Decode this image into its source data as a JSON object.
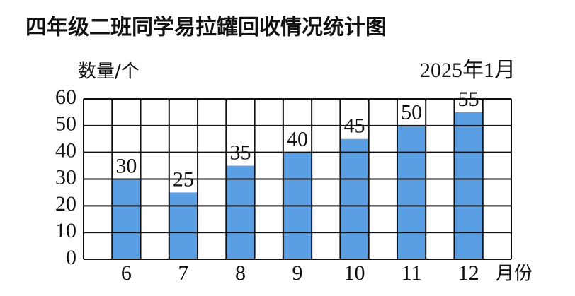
{
  "chart_data": {
    "type": "bar",
    "title": "四年级二班同学易拉罐回收情况统计图",
    "y_label": "数量/个",
    "x_label": "月份",
    "annotation": "2025年1月",
    "categories": [
      "6",
      "7",
      "8",
      "9",
      "10",
      "11",
      "12"
    ],
    "values": [
      30,
      25,
      35,
      40,
      45,
      50,
      55
    ],
    "color": "#5a9fe3",
    "ylim": [
      0,
      60
    ],
    "yticks": [
      0,
      10,
      20,
      30,
      40,
      50,
      60
    ],
    "grid": true
  }
}
